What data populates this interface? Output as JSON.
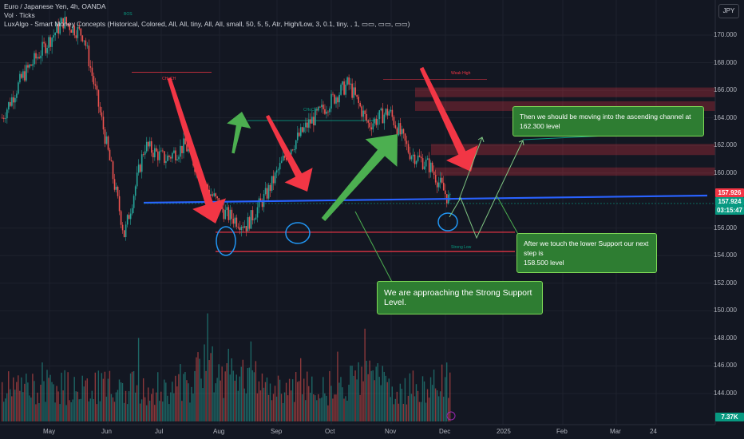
{
  "header": {
    "symbol_line": "Euro / Japanese Yen, 4h, OANDA",
    "volume_line": "Vol · Ticks",
    "indicator_line": "LuxAlgo - Smart Money Concepts (Historical, Colored, All, All, tiny, All, All, small, 50, 5, 5, Atr, High/Low, 3, 0.1, tiny, , 1, ▭▭, ▭▭, ▭▭)",
    "currency": "JPY"
  },
  "price_axis": {
    "ticks": [
      "170.000",
      "168.000",
      "166.000",
      "164.000",
      "162.000",
      "160.000",
      "156.000",
      "154.000",
      "152.000",
      "150.000",
      "148.000",
      "146.000",
      "144.000"
    ]
  },
  "price_badges": {
    "price_a": "157.926",
    "price_b": "157.924",
    "countdown": "03:15:47",
    "volume": "7.37K"
  },
  "time_axis": {
    "ticks": [
      "May",
      "Jun",
      "Jul",
      "Aug",
      "Sep",
      "Oct",
      "Nov",
      "Dec",
      "2025",
      "Feb",
      "Mar",
      "24"
    ]
  },
  "annotations": {
    "top_right": {
      "line1": "Then we should be moving into the ascending channel at 162.300 level"
    },
    "bottom_right": {
      "line1": "After we touch the lower Support our next step is",
      "line2": "158.500 level"
    },
    "center": {
      "line1": "We are approaching the Strong Support Level."
    }
  },
  "chart_labels": {
    "choch_1": "CHoCH",
    "choch_2": "CHoCH",
    "weak_high": "Weak High",
    "strong_low": "Strong Low",
    "bos": "BOS"
  },
  "colors": {
    "background": "#131722",
    "candle_up": "#26a69a",
    "candle_down": "#ef5350",
    "support_line": "#2962ff",
    "arrow_red": "#f23645",
    "arrow_green": "#4caf50",
    "box_green": "#2e7d32",
    "circle": "#2196f3"
  },
  "chart_data": {
    "type": "candlestick",
    "instrument": "EUR/JPY",
    "timeframe": "4h",
    "source": "OANDA",
    "y_range": [
      143,
      171.5
    ],
    "path": [
      {
        "x": "May",
        "y": 164.0
      },
      {
        "x": "May",
        "y": 167.0
      },
      {
        "x": "Jun",
        "y": 169.0
      },
      {
        "x": "Jul",
        "y": 171.0
      },
      {
        "x": "Jul",
        "y": 170.0
      },
      {
        "x": "Aug",
        "y": 163.0
      },
      {
        "x": "Aug",
        "y": 155.5
      },
      {
        "x": "Aug",
        "y": 162.0
      },
      {
        "x": "Aug",
        "y": 161.0
      },
      {
        "x": "Sep",
        "y": 162.0
      },
      {
        "x": "Sep",
        "y": 159.0
      },
      {
        "x": "Sep",
        "y": 157.0
      },
      {
        "x": "Sep",
        "y": 156.2
      },
      {
        "x": "Sep",
        "y": 158.5
      },
      {
        "x": "Oct",
        "y": 161.5
      },
      {
        "x": "Oct",
        "y": 163.5
      },
      {
        "x": "Oct",
        "y": 165.0
      },
      {
        "x": "Nov",
        "y": 166.5
      },
      {
        "x": "Nov",
        "y": 163.5
      },
      {
        "x": "Nov",
        "y": 164.5
      },
      {
        "x": "Nov",
        "y": 161.5
      },
      {
        "x": "Dec",
        "y": 160.5
      },
      {
        "x": "Dec",
        "y": 157.9
      }
    ],
    "support_level": 157.9,
    "strong_support_zone": [
      154.3,
      155.7
    ],
    "supply_zones": [
      [
        165.5,
        166.2
      ],
      [
        164.5,
        165.2
      ],
      [
        161.3,
        162.1
      ],
      [
        159.8,
        160.4
      ]
    ],
    "choch_level": 163.8,
    "projection": [
      157.9,
      158.5,
      155.5,
      158.5,
      162.3
    ]
  }
}
